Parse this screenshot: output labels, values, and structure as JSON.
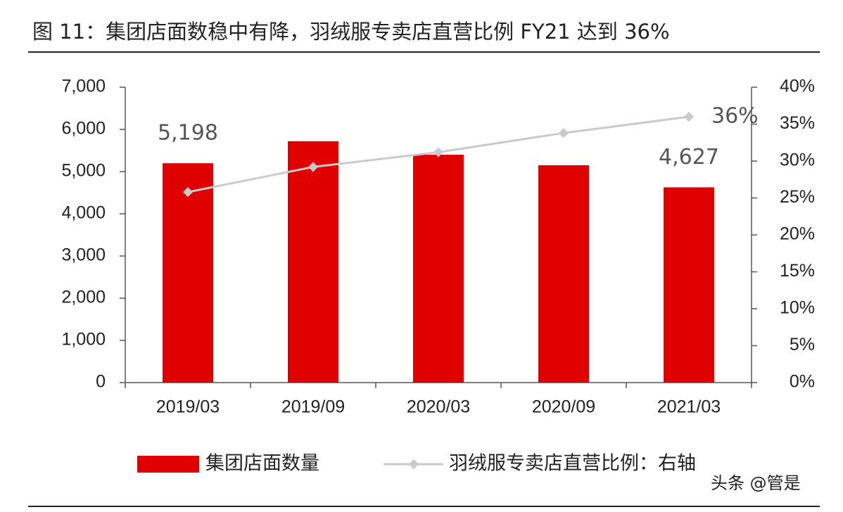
{
  "chart_data": {
    "type": "bar",
    "title": "图 11：集团店面数稳中有降，羽绒服专卖店直营比例 FY21 达到 36%",
    "categories": [
      "2019/03",
      "2019/09",
      "2020/03",
      "2020/09",
      "2021/03"
    ],
    "series": [
      {
        "name": "集团店面数量",
        "type": "bar",
        "color": "#e00000",
        "values": [
          5198,
          5720,
          5400,
          5150,
          4627
        ],
        "value_labels": [
          "5,198",
          null,
          null,
          null,
          "4,627"
        ]
      },
      {
        "name": "羽绒服专卖店直营比例：右轴",
        "type": "line",
        "axis": "y2",
        "color": "#c8cbce",
        "values": [
          25.8,
          29.2,
          31.2,
          33.8,
          36
        ],
        "value_labels": [
          null,
          null,
          null,
          null,
          "36%"
        ]
      }
    ],
    "ylim": [
      0,
      7000
    ],
    "yticks": [
      0,
      {
        "value": 1000,
        "label": "1,000"
      },
      {
        "value": 2000,
        "label": "2,000"
      },
      {
        "value": 3000,
        "label": "3,000"
      },
      {
        "value": 4000,
        "label": "4,000"
      },
      {
        "value": 5000,
        "label": "5,000"
      },
      {
        "value": 6000,
        "label": "6,000"
      },
      {
        "value": 7000,
        "label": "7,000"
      }
    ],
    "y2lim": [
      0,
      40
    ],
    "y2ticks": [
      {
        "value": 0,
        "label": "0%"
      },
      {
        "value": 5,
        "label": "5%"
      },
      {
        "value": 10,
        "label": "10%"
      },
      {
        "value": 15,
        "label": "15%"
      },
      {
        "value": 20,
        "label": "20%"
      },
      {
        "value": 25,
        "label": "25%"
      },
      {
        "value": 30,
        "label": "30%"
      },
      {
        "value": 35,
        "label": "35%"
      },
      {
        "value": 40,
        "label": "40%"
      }
    ],
    "legend": "bottom",
    "watermark": "头条 @管是"
  }
}
